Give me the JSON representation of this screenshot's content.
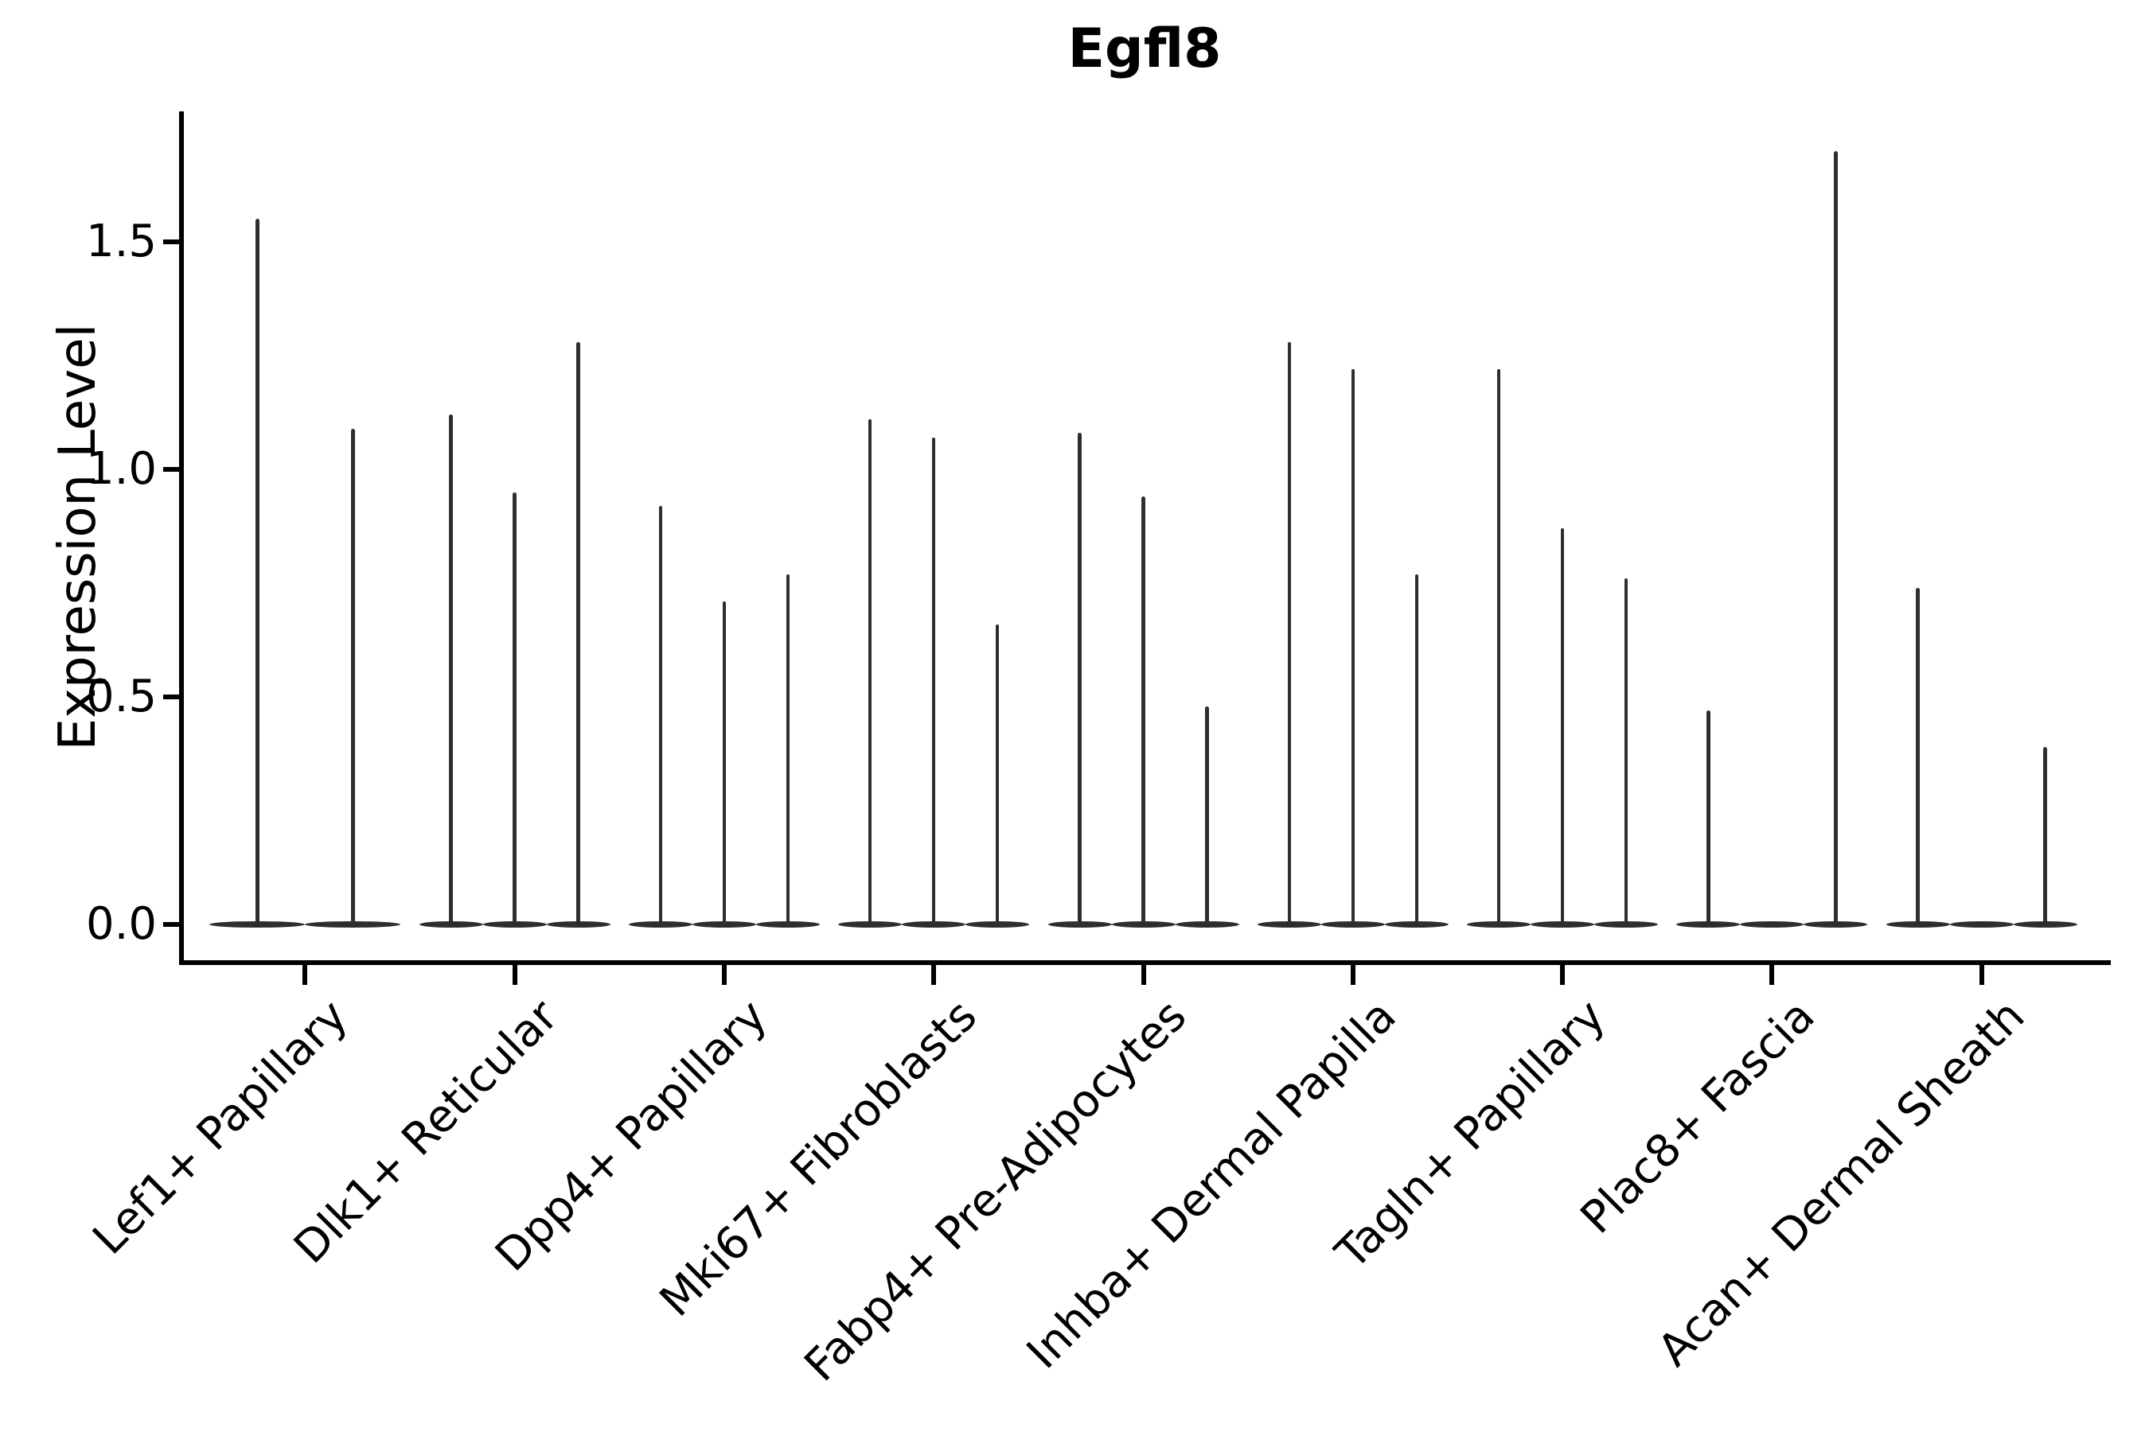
{
  "chart_data": {
    "type": "violin",
    "title": "Egfl8",
    "ylabel": "Expression Level",
    "xlabel": "",
    "ylim": [
      -0.08,
      1.79
    ],
    "grid": false,
    "legend_position": "none",
    "yticks": [
      {
        "label": "0.0",
        "value": 0.0
      },
      {
        "label": "0.5",
        "value": 0.5
      },
      {
        "label": "1.0",
        "value": 1.0
      },
      {
        "label": "1.5",
        "value": 1.5
      }
    ],
    "x_tick_rotation_deg": 45,
    "categories": [
      {
        "label": "Lef1+ Papillary",
        "violins": [
          1.55,
          1.09
        ]
      },
      {
        "label": "Dlk1+ Reticular",
        "violins": [
          1.12,
          0.95,
          1.28
        ]
      },
      {
        "label": "Dpp4+ Papillary",
        "violins": [
          0.92,
          0.71,
          0.77
        ]
      },
      {
        "label": "Mki67+ Fibroblasts",
        "violins": [
          1.11,
          1.07,
          0.66
        ]
      },
      {
        "label": "Fabp4+ Pre-Adipocytes",
        "violins": [
          1.08,
          0.94,
          0.48
        ]
      },
      {
        "label": "Inhba+ Dermal Papilla",
        "violins": [
          1.28,
          1.22,
          0.77
        ]
      },
      {
        "label": "Tagln+ Papillary",
        "violins": [
          1.22,
          0.87,
          0.76
        ]
      },
      {
        "label": "Plac8+ Fascia",
        "violins": [
          0.47,
          0,
          1.7
        ]
      },
      {
        "label": "Acan+ Dermal Sheath",
        "violins": [
          0.74,
          0,
          0.39
        ]
      }
    ],
    "series_note": "Each category shows thin needle violins; values are peak expression level per violin (0 = flat violin at baseline).",
    "colors": {
      "ink": "#000000",
      "violin": "#2e2e2e",
      "background": "#ffffff"
    }
  }
}
